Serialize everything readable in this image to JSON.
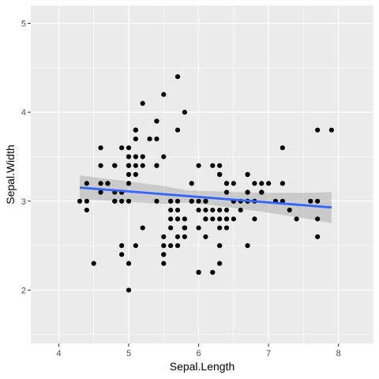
{
  "chart_data": {
    "type": "scatter",
    "title": "",
    "xlabel": "Sepal.Length",
    "ylabel": "Sepal.Width",
    "xlim": [
      3.6,
      8.5
    ],
    "ylim": [
      1.4,
      5.2
    ],
    "x_ticks": [
      4,
      5,
      6,
      7,
      8
    ],
    "y_ticks": [
      2,
      3,
      4,
      5
    ],
    "grid": true,
    "points": [
      [
        5.1,
        3.5
      ],
      [
        4.9,
        3.0
      ],
      [
        4.7,
        3.2
      ],
      [
        4.6,
        3.1
      ],
      [
        5.0,
        3.6
      ],
      [
        5.4,
        3.9
      ],
      [
        4.6,
        3.4
      ],
      [
        5.0,
        3.4
      ],
      [
        4.4,
        2.9
      ],
      [
        4.9,
        3.1
      ],
      [
        5.4,
        3.7
      ],
      [
        4.8,
        3.4
      ],
      [
        4.8,
        3.0
      ],
      [
        4.3,
        3.0
      ],
      [
        5.8,
        4.0
      ],
      [
        5.7,
        4.4
      ],
      [
        5.4,
        3.9
      ],
      [
        5.1,
        3.5
      ],
      [
        5.7,
        3.8
      ],
      [
        5.1,
        3.8
      ],
      [
        5.4,
        3.4
      ],
      [
        5.1,
        3.7
      ],
      [
        4.6,
        3.6
      ],
      [
        5.1,
        3.3
      ],
      [
        4.8,
        3.4
      ],
      [
        5.0,
        3.0
      ],
      [
        5.0,
        3.4
      ],
      [
        5.2,
        3.5
      ],
      [
        5.2,
        3.4
      ],
      [
        4.7,
        3.2
      ],
      [
        4.8,
        3.1
      ],
      [
        5.4,
        3.4
      ],
      [
        5.2,
        4.1
      ],
      [
        5.5,
        4.2
      ],
      [
        4.9,
        3.1
      ],
      [
        5.0,
        3.2
      ],
      [
        5.5,
        3.5
      ],
      [
        4.9,
        3.6
      ],
      [
        4.4,
        3.0
      ],
      [
        5.1,
        3.4
      ],
      [
        5.0,
        3.5
      ],
      [
        4.5,
        2.3
      ],
      [
        4.4,
        3.2
      ],
      [
        5.0,
        3.5
      ],
      [
        5.1,
        3.8
      ],
      [
        4.8,
        3.0
      ],
      [
        5.1,
        3.8
      ],
      [
        4.6,
        3.2
      ],
      [
        5.3,
        3.7
      ],
      [
        5.0,
        3.3
      ],
      [
        7.0,
        3.2
      ],
      [
        6.4,
        3.2
      ],
      [
        6.9,
        3.1
      ],
      [
        5.5,
        2.3
      ],
      [
        6.5,
        2.8
      ],
      [
        5.7,
        2.8
      ],
      [
        6.3,
        3.3
      ],
      [
        4.9,
        2.4
      ],
      [
        6.6,
        2.9
      ],
      [
        5.2,
        2.7
      ],
      [
        5.0,
        2.0
      ],
      [
        5.9,
        3.0
      ],
      [
        6.0,
        2.2
      ],
      [
        6.1,
        2.9
      ],
      [
        5.6,
        2.9
      ],
      [
        6.7,
        3.1
      ],
      [
        5.6,
        3.0
      ],
      [
        5.8,
        2.7
      ],
      [
        6.2,
        2.2
      ],
      [
        5.6,
        2.5
      ],
      [
        5.9,
        3.2
      ],
      [
        6.1,
        2.8
      ],
      [
        6.3,
        2.5
      ],
      [
        6.1,
        2.8
      ],
      [
        6.4,
        2.9
      ],
      [
        6.6,
        3.0
      ],
      [
        6.8,
        2.8
      ],
      [
        6.7,
        3.0
      ],
      [
        6.0,
        2.9
      ],
      [
        5.7,
        2.6
      ],
      [
        5.5,
        2.4
      ],
      [
        5.5,
        2.4
      ],
      [
        5.8,
        2.7
      ],
      [
        6.0,
        2.7
      ],
      [
        5.4,
        3.0
      ],
      [
        6.0,
        3.4
      ],
      [
        6.7,
        3.1
      ],
      [
        6.3,
        2.3
      ],
      [
        5.6,
        3.0
      ],
      [
        5.5,
        2.5
      ],
      [
        5.5,
        2.6
      ],
      [
        6.1,
        3.0
      ],
      [
        5.8,
        2.6
      ],
      [
        5.0,
        2.3
      ],
      [
        5.6,
        2.7
      ],
      [
        5.7,
        3.0
      ],
      [
        5.7,
        2.9
      ],
      [
        6.2,
        2.9
      ],
      [
        5.1,
        2.5
      ],
      [
        5.7,
        2.8
      ],
      [
        6.3,
        3.3
      ],
      [
        5.8,
        2.7
      ],
      [
        7.1,
        3.0
      ],
      [
        6.3,
        2.9
      ],
      [
        6.5,
        3.0
      ],
      [
        7.6,
        3.0
      ],
      [
        4.9,
        2.5
      ],
      [
        7.3,
        2.9
      ],
      [
        6.7,
        2.5
      ],
      [
        7.2,
        3.6
      ],
      [
        6.5,
        3.2
      ],
      [
        6.4,
        2.7
      ],
      [
        6.8,
        3.0
      ],
      [
        5.7,
        2.5
      ],
      [
        5.8,
        2.8
      ],
      [
        6.4,
        3.2
      ],
      [
        6.5,
        3.0
      ],
      [
        7.7,
        3.8
      ],
      [
        7.7,
        2.6
      ],
      [
        6.0,
        2.2
      ],
      [
        6.9,
        3.2
      ],
      [
        5.6,
        2.8
      ],
      [
        7.7,
        2.8
      ],
      [
        6.3,
        2.7
      ],
      [
        6.7,
        3.3
      ],
      [
        7.2,
        3.2
      ],
      [
        6.2,
        2.8
      ],
      [
        6.1,
        3.0
      ],
      [
        6.4,
        2.8
      ],
      [
        7.2,
        3.0
      ],
      [
        7.4,
        2.8
      ],
      [
        7.9,
        3.8
      ],
      [
        6.4,
        2.8
      ],
      [
        6.3,
        2.8
      ],
      [
        6.1,
        2.6
      ],
      [
        7.7,
        3.0
      ],
      [
        6.3,
        3.4
      ],
      [
        6.4,
        3.1
      ],
      [
        6.0,
        3.0
      ],
      [
        6.9,
        3.1
      ],
      [
        6.7,
        3.1
      ],
      [
        6.9,
        3.1
      ],
      [
        5.8,
        2.7
      ],
      [
        6.8,
        3.2
      ],
      [
        6.7,
        3.3
      ],
      [
        6.7,
        3.0
      ],
      [
        6.3,
        2.5
      ],
      [
        6.5,
        3.0
      ],
      [
        6.2,
        3.4
      ],
      [
        5.9,
        3.0
      ]
    ],
    "fit_line": {
      "method": "lm",
      "intercept": 3.4189,
      "slope": -0.0619,
      "x_range": [
        4.3,
        7.9
      ],
      "color": "#3366FF"
    },
    "confidence_band": {
      "x": [
        4.3,
        4.9,
        5.5,
        5.84,
        6.3,
        6.9,
        7.5,
        7.9
      ],
      "lower": [
        3.023,
        2.997,
        2.969,
        2.985,
        2.944,
        2.883,
        2.809,
        2.753
      ],
      "upper": [
        3.29,
        3.232,
        3.17,
        3.12,
        3.109,
        3.094,
        3.093,
        3.101
      ],
      "color": "#999999"
    },
    "colors": {
      "panel": "#EBEBEB",
      "grid": "#FFFFFF",
      "point": "#000000"
    }
  }
}
